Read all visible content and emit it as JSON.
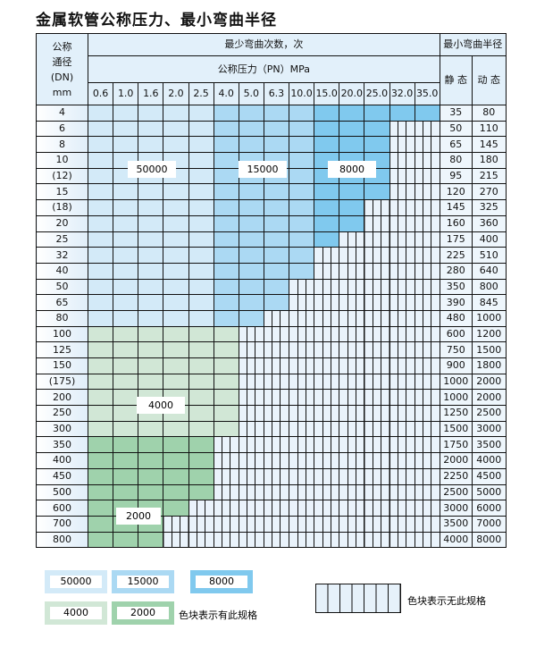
{
  "title": "金属软管公称压力、最小弯曲半径",
  "header": {
    "dn_label": [
      "公称",
      "通径",
      "(DN)",
      "mm"
    ],
    "cycles_label": "最少弯曲次数，次",
    "pressure_label": "公称压力（PN）MPa",
    "radius_label": "最小弯曲半径",
    "static_label": "静 态",
    "dynamic_label": "动 态",
    "pressures": [
      "0.6",
      "1.0",
      "1.6",
      "2.0",
      "2.5",
      "4.0",
      "5.0",
      "6.3",
      "10.0",
      "15.0",
      "20.0",
      "25.0",
      "32.0",
      "35.0"
    ]
  },
  "colors": {
    "a_50000": "#d3eaf8",
    "b_15000": "#abd9f3",
    "c_8000": "#80c9ee",
    "d_4000": "#d1e7d6",
    "e_2000": "#9fd2ac",
    "x_none": "#eaf3fb"
  },
  "rows": [
    {
      "dn": "4",
      "cells": "aaaaabbbbccccc",
      "static": "35",
      "dynamic": "80"
    },
    {
      "dn": "6",
      "cells": "aaaaabbbbcccxx",
      "static": "50",
      "dynamic": "110"
    },
    {
      "dn": "8",
      "cells": "aaaaabbbbcccxx",
      "static": "65",
      "dynamic": "145"
    },
    {
      "dn": "10",
      "cells": "aaaaabbbbcccxx",
      "static": "80",
      "dynamic": "180"
    },
    {
      "dn": "(12)",
      "cells": "aaaaabbbbcccxx",
      "static": "95",
      "dynamic": "215"
    },
    {
      "dn": "15",
      "cells": "aaaaabbbbcccxx",
      "static": "120",
      "dynamic": "270"
    },
    {
      "dn": "(18)",
      "cells": "aaaaabbbbccxxx",
      "static": "145",
      "dynamic": "325"
    },
    {
      "dn": "20",
      "cells": "aaaaabbbbccxxx",
      "static": "160",
      "dynamic": "360"
    },
    {
      "dn": "25",
      "cells": "aaaaabbbbcxxxx",
      "static": "175",
      "dynamic": "400"
    },
    {
      "dn": "32",
      "cells": "aaaaabbbbxxxxx",
      "static": "225",
      "dynamic": "510"
    },
    {
      "dn": "40",
      "cells": "aaaaabbbbxxxxx",
      "static": "280",
      "dynamic": "640"
    },
    {
      "dn": "50",
      "cells": "aaaaabbbxxxxxx",
      "static": "350",
      "dynamic": "800"
    },
    {
      "dn": "65",
      "cells": "aaaaabbbxxxxxx",
      "static": "390",
      "dynamic": "845"
    },
    {
      "dn": "80",
      "cells": "aaaaabbxxxxxxx",
      "static": "480",
      "dynamic": "1000"
    },
    {
      "dn": "100",
      "cells": "ddddddxxxxxxxx",
      "static": "600",
      "dynamic": "1200"
    },
    {
      "dn": "125",
      "cells": "ddddddxxxxxxxx",
      "static": "750",
      "dynamic": "1500"
    },
    {
      "dn": "150",
      "cells": "ddddddxxxxxxxx",
      "static": "900",
      "dynamic": "1800"
    },
    {
      "dn": "(175)",
      "cells": "ddddddxxxxxxxx",
      "static": "1000",
      "dynamic": "2000"
    },
    {
      "dn": "200",
      "cells": "ddddddxxxxxxxx",
      "static": "1000",
      "dynamic": "2000"
    },
    {
      "dn": "250",
      "cells": "ddddddxxxxxxxx",
      "static": "1250",
      "dynamic": "2500"
    },
    {
      "dn": "300",
      "cells": "ddddddxxxxxxxx",
      "static": "1500",
      "dynamic": "3000"
    },
    {
      "dn": "350",
      "cells": "eeeeexxxxxxxxx",
      "static": "1750",
      "dynamic": "3500"
    },
    {
      "dn": "400",
      "cells": "eeeeexxxxxxxxx",
      "static": "2000",
      "dynamic": "4000"
    },
    {
      "dn": "450",
      "cells": "eeeeexxxxxxxxx",
      "static": "2250",
      "dynamic": "4500"
    },
    {
      "dn": "500",
      "cells": "eeeeexxxxxxxxx",
      "static": "2500",
      "dynamic": "5000"
    },
    {
      "dn": "600",
      "cells": "eeeexxxxxxxxxx",
      "static": "3000",
      "dynamic": "6000"
    },
    {
      "dn": "700",
      "cells": "eeexxxxxxxxxxx",
      "static": "3500",
      "dynamic": "7000"
    },
    {
      "dn": "800",
      "cells": "eeexxxxxxxxxxx",
      "static": "4000",
      "dynamic": "8000"
    }
  ],
  "region_labels": {
    "a": "50000",
    "b": "15000",
    "c": "8000",
    "d": "4000",
    "e": "2000"
  },
  "legend": {
    "items": [
      "50000",
      "15000",
      "8000",
      "4000",
      "2000"
    ],
    "has_spec": "色块表示有此规格",
    "no_spec": "色块表示无此规格"
  }
}
